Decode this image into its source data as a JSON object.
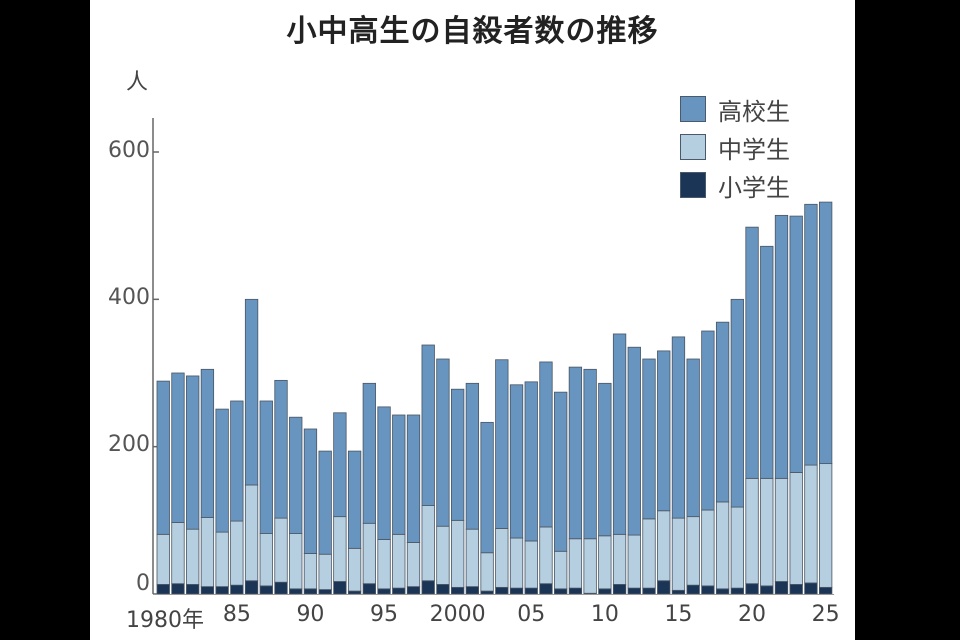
{
  "chart_data": {
    "type": "bar",
    "stacked": true,
    "title": "小中高生の自殺者数の推移",
    "ylabel": "人",
    "xlabel": "",
    "ylim": [
      0,
      650
    ],
    "yticks": [
      0,
      200,
      400,
      600
    ],
    "xtick_labels": [
      "1980年",
      "85",
      "90",
      "95",
      "2000",
      "05",
      "10",
      "15",
      "20",
      "25"
    ],
    "legend_position": "top-right",
    "categories": [
      1980,
      1981,
      1982,
      1983,
      1984,
      1985,
      1986,
      1987,
      1988,
      1989,
      1990,
      1991,
      1992,
      1993,
      1994,
      1995,
      1996,
      1997,
      1998,
      1999,
      2000,
      2001,
      2002,
      2003,
      2004,
      2005,
      2006,
      2007,
      2008,
      2009,
      2010,
      2011,
      2012,
      2013,
      2014,
      2015,
      2016,
      2017,
      2018,
      2019,
      2020,
      2021,
      2022,
      2023,
      2024,
      2025
    ],
    "series": [
      {
        "name": "小学生",
        "color": "#1b3556",
        "values": [
          13,
          14,
          13,
          10,
          10,
          12,
          18,
          11,
          16,
          7,
          7,
          6,
          17,
          4,
          14,
          7,
          8,
          10,
          18,
          13,
          9,
          10,
          4,
          9,
          8,
          8,
          14,
          7,
          8,
          1,
          7,
          13,
          8,
          8,
          18,
          5,
          12,
          11,
          7,
          8,
          14,
          11,
          17,
          13,
          15,
          9
        ]
      },
      {
        "name": "中学生",
        "color": "#b5cfe0",
        "values": [
          68,
          83,
          75,
          94,
          74,
          87,
          130,
          71,
          87,
          75,
          48,
          48,
          88,
          58,
          82,
          67,
          73,
          60,
          102,
          79,
          91,
          78,
          52,
          80,
          68,
          64,
          77,
          51,
          67,
          74,
          72,
          68,
          72,
          94,
          95,
          98,
          93,
          103,
          118,
          110,
          143,
          146,
          140,
          152,
          160,
          168
        ]
      },
      {
        "name": "高校生",
        "color": "#6795bf",
        "values": [
          208,
          203,
          208,
          201,
          167,
          163,
          252,
          180,
          187,
          158,
          169,
          140,
          141,
          132,
          190,
          180,
          162,
          173,
          218,
          227,
          178,
          198,
          177,
          229,
          208,
          216,
          224,
          216,
          233,
          230,
          207,
          272,
          255,
          217,
          217,
          246,
          214,
          243,
          244,
          282,
          341,
          315,
          357,
          348,
          354,
          355
        ]
      }
    ]
  },
  "title": "小中高生の自殺者数の推移",
  "unit_label": "人",
  "legend": [
    {
      "label": "高校生",
      "color": "#6795bf"
    },
    {
      "label": "中学生",
      "color": "#b5cfe0"
    },
    {
      "label": "小学生",
      "color": "#1b3556"
    }
  ],
  "yticks": [
    "0",
    "200",
    "400",
    "600"
  ],
  "xticks": [
    {
      "label": "1980年",
      "year": 1980
    },
    {
      "label": "85",
      "year": 1985
    },
    {
      "label": "90",
      "year": 1990
    },
    {
      "label": "95",
      "year": 1995
    },
    {
      "label": "2000",
      "year": 2000
    },
    {
      "label": "05",
      "year": 2005
    },
    {
      "label": "10",
      "year": 2010
    },
    {
      "label": "15",
      "year": 2015
    },
    {
      "label": "20",
      "year": 2020
    },
    {
      "label": "25",
      "year": 2025
    }
  ]
}
